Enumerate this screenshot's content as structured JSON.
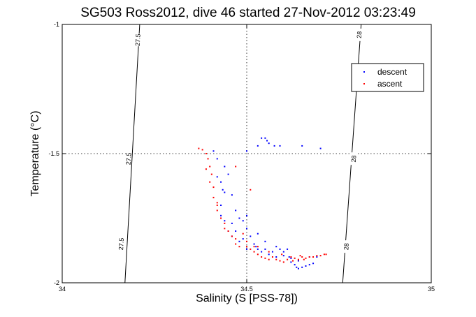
{
  "chart_data": {
    "type": "scatter",
    "title": "SG503 Ross2012, dive 46 started 27-Nov-2012 03:23:49",
    "xlabel": "Salinity (S [PSS-78])",
    "ylabel": "Temperature (°C)",
    "xlim": [
      34,
      35
    ],
    "ylim": [
      -2,
      -1
    ],
    "x_ticks": [
      34,
      34.5,
      35
    ],
    "x_tick_labels": [
      "34",
      "34.5",
      "35"
    ],
    "y_ticks": [
      -2,
      -1.5,
      -1
    ],
    "y_tick_labels": [
      "-2",
      "-1.5",
      "-1"
    ],
    "grid": "dotted, at interior ticks",
    "legend": {
      "position": "top-right"
    },
    "density_contours": [
      {
        "label": "27.5",
        "points": [
          [
            34.17,
            -2.0
          ],
          [
            34.21,
            -1.0
          ]
        ],
        "label_positions": [
          [
            34.205,
            -1.06
          ],
          [
            34.18,
            -1.52
          ],
          [
            34.16,
            -1.85
          ]
        ]
      },
      {
        "label": "28",
        "points": [
          [
            34.76,
            -2.0
          ],
          [
            34.81,
            -1.0
          ]
        ],
        "label_positions": [
          [
            34.805,
            -1.04
          ],
          [
            34.79,
            -1.52
          ],
          [
            34.77,
            -1.86
          ]
        ]
      }
    ],
    "series": [
      {
        "name": "descent",
        "color": "#0000ff",
        "points": [
          [
            34.54,
            -1.44
          ],
          [
            34.55,
            -1.44
          ],
          [
            34.555,
            -1.45
          ],
          [
            34.56,
            -1.46
          ],
          [
            34.575,
            -1.47
          ],
          [
            34.59,
            -1.47
          ],
          [
            34.65,
            -1.47
          ],
          [
            34.7,
            -1.48
          ],
          [
            34.42,
            -1.52
          ],
          [
            34.44,
            -1.55
          ],
          [
            34.42,
            -1.59
          ],
          [
            34.43,
            -1.61
          ],
          [
            34.435,
            -1.64
          ],
          [
            34.46,
            -1.66
          ],
          [
            34.43,
            -1.7
          ],
          [
            34.43,
            -1.74
          ],
          [
            34.44,
            -1.76
          ],
          [
            34.47,
            -1.72
          ],
          [
            34.48,
            -1.75
          ],
          [
            34.46,
            -1.77
          ],
          [
            34.5,
            -1.74
          ],
          [
            34.49,
            -1.76
          ],
          [
            34.47,
            -1.8
          ],
          [
            34.5,
            -1.79
          ],
          [
            34.51,
            -1.82
          ],
          [
            34.49,
            -1.83
          ],
          [
            34.53,
            -1.81
          ],
          [
            34.55,
            -1.84
          ],
          [
            34.52,
            -1.85
          ],
          [
            34.53,
            -1.87
          ],
          [
            34.5,
            -1.87
          ],
          [
            34.55,
            -1.87
          ],
          [
            34.57,
            -1.88
          ],
          [
            34.58,
            -1.86
          ],
          [
            34.59,
            -1.87
          ],
          [
            34.6,
            -1.88
          ],
          [
            34.61,
            -1.87
          ],
          [
            34.615,
            -1.9
          ],
          [
            34.62,
            -1.92
          ],
          [
            34.63,
            -1.93
          ],
          [
            34.635,
            -1.94
          ],
          [
            34.64,
            -1.945
          ],
          [
            34.65,
            -1.94
          ],
          [
            34.66,
            -1.935
          ],
          [
            34.67,
            -1.93
          ],
          [
            34.68,
            -1.925
          ],
          [
            34.67,
            -1.9
          ],
          [
            34.69,
            -1.9
          ],
          [
            34.64,
            -1.915
          ],
          [
            34.62,
            -1.905
          ],
          [
            34.6,
            -1.895
          ],
          [
            34.58,
            -1.9
          ],
          [
            34.56,
            -1.89
          ],
          [
            34.54,
            -1.88
          ],
          [
            34.525,
            -1.86
          ],
          [
            34.48,
            -1.84
          ],
          [
            34.46,
            -1.82
          ],
          [
            34.45,
            -1.8
          ],
          [
            34.44,
            -1.65
          ],
          [
            34.45,
            -1.58
          ],
          [
            34.41,
            -1.49
          ],
          [
            34.5,
            -1.49
          ],
          [
            34.53,
            -1.47
          ]
        ]
      },
      {
        "name": "ascent",
        "color": "#ff0000",
        "points": [
          [
            34.37,
            -1.48
          ],
          [
            34.38,
            -1.485
          ],
          [
            34.39,
            -1.5
          ],
          [
            34.395,
            -1.52
          ],
          [
            34.4,
            -1.55
          ],
          [
            34.405,
            -1.58
          ],
          [
            34.4,
            -1.61
          ],
          [
            34.41,
            -1.63
          ],
          [
            34.41,
            -1.67
          ],
          [
            34.42,
            -1.7
          ],
          [
            34.42,
            -1.72
          ],
          [
            34.43,
            -1.75
          ],
          [
            34.44,
            -1.77
          ],
          [
            34.45,
            -1.8
          ],
          [
            34.46,
            -1.82
          ],
          [
            34.47,
            -1.83
          ],
          [
            34.47,
            -1.85
          ],
          [
            34.48,
            -1.86
          ],
          [
            34.5,
            -1.86
          ],
          [
            34.51,
            -1.87
          ],
          [
            34.52,
            -1.88
          ],
          [
            34.53,
            -1.89
          ],
          [
            34.54,
            -1.9
          ],
          [
            34.55,
            -1.905
          ],
          [
            34.56,
            -1.91
          ],
          [
            34.57,
            -1.9
          ],
          [
            34.58,
            -1.91
          ],
          [
            34.59,
            -1.915
          ],
          [
            34.6,
            -1.92
          ],
          [
            34.61,
            -1.91
          ],
          [
            34.62,
            -1.9
          ],
          [
            34.63,
            -1.905
          ],
          [
            34.64,
            -1.91
          ],
          [
            34.65,
            -1.9
          ],
          [
            34.66,
            -1.905
          ],
          [
            34.67,
            -1.9
          ],
          [
            34.68,
            -1.9
          ],
          [
            34.69,
            -1.895
          ],
          [
            34.7,
            -1.895
          ],
          [
            34.71,
            -1.89
          ],
          [
            34.715,
            -1.89
          ],
          [
            34.52,
            -1.86
          ],
          [
            34.5,
            -1.84
          ],
          [
            34.49,
            -1.81
          ],
          [
            34.44,
            -1.79
          ],
          [
            34.42,
            -1.69
          ],
          [
            34.39,
            -1.56
          ],
          [
            34.47,
            -1.55
          ],
          [
            34.51,
            -1.64
          ],
          [
            34.53,
            -1.86
          ],
          [
            34.56,
            -1.88
          ],
          [
            34.595,
            -1.89
          ],
          [
            34.645,
            -1.895
          ],
          [
            34.655,
            -1.91
          ],
          [
            34.625,
            -1.915
          ]
        ]
      }
    ]
  }
}
